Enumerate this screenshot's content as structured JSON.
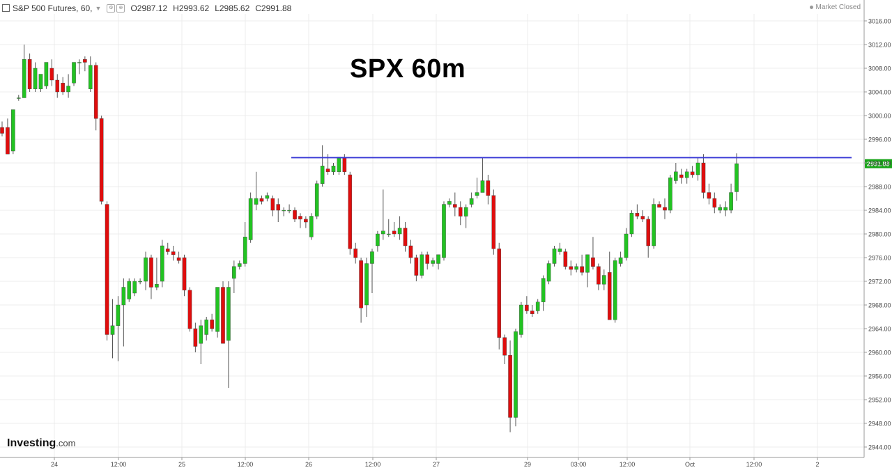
{
  "header": {
    "symbol": "S&P 500 Futures, 60,",
    "caret": "▼",
    "open": "O2987.12",
    "high": "H2993.62",
    "low": "L2985.62",
    "close": "C2991.88",
    "market_status": "Market Closed"
  },
  "brand": {
    "name": "Investing",
    "domain": ".com"
  },
  "colors": {
    "up": "#22c322",
    "down": "#e00d0d",
    "resistance": "#3b3bd6",
    "price_tag": "#1aa51a",
    "grid": "#ececec"
  },
  "chart_data": {
    "type": "candlestick",
    "title": "SPX 60m",
    "ylim": [
      2942,
      3018
    ],
    "y_ticks": [
      "3016.00",
      "3012.00",
      "3008.00",
      "3004.00",
      "3000.00",
      "2996.00",
      "2992.00",
      "2988.00",
      "2984.00",
      "2980.00",
      "2976.00",
      "2972.00",
      "2968.00",
      "2964.00",
      "2960.00",
      "2956.00",
      "2952.00",
      "2948.00",
      "2944.00"
    ],
    "x_ticks": [
      "24",
      "12:00",
      "25",
      "12:00",
      "26",
      "12:00",
      "27",
      "29",
      "03:00",
      "12:00",
      "Oct",
      "12:00",
      "2"
    ],
    "last_price": "2991.88",
    "resistance_level": 2992.9,
    "candles": [
      {
        "o": 2998.0,
        "h": 2999.0,
        "l": 2996.5,
        "c": 2997.0
      },
      {
        "o": 2998.0,
        "h": 2999.5,
        "l": 2993.5,
        "c": 2993.5
      },
      {
        "o": 2994.0,
        "h": 3001.0,
        "l": 2993.5,
        "c": 3001.0
      },
      {
        "o": 3003.0,
        "h": 3003.5,
        "l": 3002.5,
        "c": 3003.0
      },
      {
        "o": 3003.0,
        "h": 3012.0,
        "l": 3003.0,
        "c": 3009.5
      },
      {
        "o": 3009.5,
        "h": 3010.5,
        "l": 3004.0,
        "c": 3004.5
      },
      {
        "o": 3004.5,
        "h": 3009.0,
        "l": 3004.0,
        "c": 3008.0
      },
      {
        "o": 3004.5,
        "h": 3007.0,
        "l": 3004.0,
        "c": 3007.0
      },
      {
        "o": 3005.0,
        "h": 3009.0,
        "l": 3004.5,
        "c": 3009.0
      },
      {
        "o": 3008.0,
        "h": 3009.5,
        "l": 3005.0,
        "c": 3006.0
      },
      {
        "o": 3006.0,
        "h": 3007.0,
        "l": 3003.0,
        "c": 3004.0
      },
      {
        "o": 3005.5,
        "h": 3006.5,
        "l": 3003.5,
        "c": 3004.0
      },
      {
        "o": 3004.0,
        "h": 3007.0,
        "l": 3003.0,
        "c": 3005.0
      },
      {
        "o": 3005.5,
        "h": 3009.0,
        "l": 3005.0,
        "c": 3009.0
      },
      {
        "o": 3009.0,
        "h": 3009.5,
        "l": 3007.0,
        "c": 3009.0
      },
      {
        "o": 3009.5,
        "h": 3010.0,
        "l": 3007.5,
        "c": 3009.0
      },
      {
        "o": 3004.5,
        "h": 3010.0,
        "l": 3004.0,
        "c": 3008.5
      },
      {
        "o": 3008.5,
        "h": 3009.0,
        "l": 2997.5,
        "c": 2999.5
      },
      {
        "o": 2999.5,
        "h": 3000.0,
        "l": 2985.0,
        "c": 2985.5
      },
      {
        "o": 2985.0,
        "h": 2985.5,
        "l": 2962.0,
        "c": 2963.0
      },
      {
        "o": 2963.0,
        "h": 2969.0,
        "l": 2959.0,
        "c": 2964.5
      },
      {
        "o": 2964.5,
        "h": 2969.5,
        "l": 2958.5,
        "c": 2968.0
      },
      {
        "o": 2968.0,
        "h": 2972.5,
        "l": 2961.0,
        "c": 2971.0
      },
      {
        "o": 2969.0,
        "h": 2972.5,
        "l": 2968.5,
        "c": 2972.0
      },
      {
        "o": 2970.0,
        "h": 2972.5,
        "l": 2969.5,
        "c": 2972.0
      },
      {
        "o": 2972.0,
        "h": 2972.5,
        "l": 2971.5,
        "c": 2972.0
      },
      {
        "o": 2972.0,
        "h": 2977.0,
        "l": 2970.5,
        "c": 2976.0
      },
      {
        "o": 2976.0,
        "h": 2976.5,
        "l": 2969.0,
        "c": 2971.0
      },
      {
        "o": 2971.0,
        "h": 2976.0,
        "l": 2970.5,
        "c": 2971.5
      },
      {
        "o": 2972.0,
        "h": 2979.0,
        "l": 2971.0,
        "c": 2978.0
      },
      {
        "o": 2977.5,
        "h": 2978.5,
        "l": 2976.5,
        "c": 2977.0
      },
      {
        "o": 2977.0,
        "h": 2978.0,
        "l": 2975.5,
        "c": 2976.5
      },
      {
        "o": 2976.0,
        "h": 2977.0,
        "l": 2975.0,
        "c": 2975.5
      },
      {
        "o": 2976.0,
        "h": 2976.5,
        "l": 2969.5,
        "c": 2970.5
      },
      {
        "o": 2970.5,
        "h": 2971.0,
        "l": 2963.5,
        "c": 2964.0
      },
      {
        "o": 2964.0,
        "h": 2965.0,
        "l": 2960.0,
        "c": 2961.0
      },
      {
        "o": 2961.5,
        "h": 2965.5,
        "l": 2958.0,
        "c": 2964.5
      },
      {
        "o": 2963.0,
        "h": 2966.0,
        "l": 2962.0,
        "c": 2965.5
      },
      {
        "o": 2965.5,
        "h": 2966.5,
        "l": 2963.5,
        "c": 2964.0
      },
      {
        "o": 2963.5,
        "h": 2971.0,
        "l": 2962.5,
        "c": 2971.0
      },
      {
        "o": 2971.0,
        "h": 2972.0,
        "l": 2961.5,
        "c": 2961.5
      },
      {
        "o": 2962.0,
        "h": 2972.0,
        "l": 2954.0,
        "c": 2971.0
      },
      {
        "o": 2972.5,
        "h": 2975.5,
        "l": 2970.0,
        "c": 2974.5
      },
      {
        "o": 2974.5,
        "h": 2975.5,
        "l": 2974.0,
        "c": 2975.0
      },
      {
        "o": 2975.0,
        "h": 2982.0,
        "l": 2974.5,
        "c": 2979.5
      },
      {
        "o": 2979.0,
        "h": 2987.0,
        "l": 2978.5,
        "c": 2986.0
      },
      {
        "o": 2985.0,
        "h": 2990.5,
        "l": 2984.0,
        "c": 2986.0
      },
      {
        "o": 2986.0,
        "h": 2986.5,
        "l": 2985.0,
        "c": 2985.5
      },
      {
        "o": 2986.0,
        "h": 2987.0,
        "l": 2985.5,
        "c": 2986.5
      },
      {
        "o": 2986.0,
        "h": 2986.5,
        "l": 2983.0,
        "c": 2984.0
      },
      {
        "o": 2985.0,
        "h": 2986.0,
        "l": 2982.0,
        "c": 2984.0
      },
      {
        "o": 2984.0,
        "h": 2984.5,
        "l": 2983.0,
        "c": 2984.0
      },
      {
        "o": 2984.0,
        "h": 2985.0,
        "l": 2983.5,
        "c": 2984.0
      },
      {
        "o": 2984.0,
        "h": 2984.5,
        "l": 2982.0,
        "c": 2982.5
      },
      {
        "o": 2983.0,
        "h": 2983.5,
        "l": 2981.0,
        "c": 2982.5
      },
      {
        "o": 2982.5,
        "h": 2983.0,
        "l": 2981.0,
        "c": 2982.0
      },
      {
        "o": 2979.5,
        "h": 2983.5,
        "l": 2979.0,
        "c": 2983.0
      },
      {
        "o": 2983.0,
        "h": 2989.0,
        "l": 2982.5,
        "c": 2988.5
      },
      {
        "o": 2988.5,
        "h": 2995.0,
        "l": 2988.0,
        "c": 2991.5
      },
      {
        "o": 2991.0,
        "h": 2993.5,
        "l": 2990.0,
        "c": 2990.5
      },
      {
        "o": 2990.5,
        "h": 2992.0,
        "l": 2990.0,
        "c": 2991.5
      },
      {
        "o": 2990.5,
        "h": 2993.0,
        "l": 2990.0,
        "c": 2993.0
      },
      {
        "o": 2993.0,
        "h": 2993.5,
        "l": 2990.0,
        "c": 2990.5
      },
      {
        "o": 2990.0,
        "h": 2990.5,
        "l": 2976.5,
        "c": 2977.5
      },
      {
        "o": 2977.5,
        "h": 2978.5,
        "l": 2975.0,
        "c": 2976.0
      },
      {
        "o": 2975.5,
        "h": 2976.0,
        "l": 2965.0,
        "c": 2967.5
      },
      {
        "o": 2968.0,
        "h": 2976.0,
        "l": 2966.0,
        "c": 2975.0
      },
      {
        "o": 2975.0,
        "h": 2977.5,
        "l": 2970.0,
        "c": 2977.0
      },
      {
        "o": 2978.0,
        "h": 2980.5,
        "l": 2977.0,
        "c": 2980.0
      },
      {
        "o": 2980.0,
        "h": 2987.5,
        "l": 2979.0,
        "c": 2980.5
      },
      {
        "o": 2980.0,
        "h": 2982.5,
        "l": 2979.5,
        "c": 2980.0
      },
      {
        "o": 2980.5,
        "h": 2982.0,
        "l": 2979.5,
        "c": 2980.0
      },
      {
        "o": 2980.0,
        "h": 2983.0,
        "l": 2979.0,
        "c": 2981.0
      },
      {
        "o": 2981.0,
        "h": 2982.0,
        "l": 2977.0,
        "c": 2978.0
      },
      {
        "o": 2978.0,
        "h": 2979.0,
        "l": 2975.0,
        "c": 2976.0
      },
      {
        "o": 2976.0,
        "h": 2976.5,
        "l": 2972.0,
        "c": 2973.0
      },
      {
        "o": 2973.0,
        "h": 2977.0,
        "l": 2972.5,
        "c": 2976.5
      },
      {
        "o": 2976.5,
        "h": 2977.0,
        "l": 2974.0,
        "c": 2975.0
      },
      {
        "o": 2975.0,
        "h": 2976.0,
        "l": 2974.5,
        "c": 2975.5
      },
      {
        "o": 2975.0,
        "h": 2976.5,
        "l": 2974.0,
        "c": 2976.5
      },
      {
        "o": 2976.0,
        "h": 2985.5,
        "l": 2975.5,
        "c": 2985.0
      },
      {
        "o": 2985.0,
        "h": 2986.0,
        "l": 2984.5,
        "c": 2985.5
      },
      {
        "o": 2985.0,
        "h": 2987.0,
        "l": 2983.0,
        "c": 2984.5
      },
      {
        "o": 2984.5,
        "h": 2985.5,
        "l": 2981.5,
        "c": 2983.0
      },
      {
        "o": 2983.0,
        "h": 2985.0,
        "l": 2981.0,
        "c": 2984.5
      },
      {
        "o": 2985.0,
        "h": 2987.0,
        "l": 2984.5,
        "c": 2986.0
      },
      {
        "o": 2986.5,
        "h": 2989.5,
        "l": 2986.0,
        "c": 2987.0
      },
      {
        "o": 2987.0,
        "h": 2993.0,
        "l": 2987.0,
        "c": 2989.0
      },
      {
        "o": 2989.0,
        "h": 2990.0,
        "l": 2985.0,
        "c": 2986.5
      },
      {
        "o": 2986.5,
        "h": 2987.5,
        "l": 2976.5,
        "c": 2977.5
      },
      {
        "o": 2977.5,
        "h": 2978.5,
        "l": 2960.5,
        "c": 2962.5
      },
      {
        "o": 2962.5,
        "h": 2963.0,
        "l": 2958.0,
        "c": 2959.5
      },
      {
        "o": 2959.5,
        "h": 2962.0,
        "l": 2946.5,
        "c": 2949.0
      },
      {
        "o": 2949.0,
        "h": 2964.0,
        "l": 2947.5,
        "c": 2963.5
      },
      {
        "o": 2963.0,
        "h": 2968.5,
        "l": 2962.5,
        "c": 2968.0
      },
      {
        "o": 2968.0,
        "h": 2969.5,
        "l": 2966.5,
        "c": 2967.0
      },
      {
        "o": 2967.0,
        "h": 2968.0,
        "l": 2966.0,
        "c": 2966.5
      },
      {
        "o": 2967.0,
        "h": 2969.0,
        "l": 2966.5,
        "c": 2968.5
      },
      {
        "o": 2968.5,
        "h": 2973.0,
        "l": 2967.0,
        "c": 2972.5
      },
      {
        "o": 2972.0,
        "h": 2975.5,
        "l": 2971.5,
        "c": 2975.0
      },
      {
        "o": 2975.0,
        "h": 2978.0,
        "l": 2974.5,
        "c": 2977.5
      },
      {
        "o": 2977.0,
        "h": 2978.5,
        "l": 2976.5,
        "c": 2977.5
      },
      {
        "o": 2977.0,
        "h": 2977.5,
        "l": 2974.0,
        "c": 2974.5
      },
      {
        "o": 2974.5,
        "h": 2975.5,
        "l": 2973.0,
        "c": 2974.0
      },
      {
        "o": 2974.0,
        "h": 2975.0,
        "l": 2973.5,
        "c": 2974.5
      },
      {
        "o": 2974.5,
        "h": 2976.5,
        "l": 2973.0,
        "c": 2973.5
      },
      {
        "o": 2973.5,
        "h": 2976.5,
        "l": 2971.0,
        "c": 2976.5
      },
      {
        "o": 2976.0,
        "h": 2979.5,
        "l": 2974.0,
        "c": 2974.5
      },
      {
        "o": 2974.5,
        "h": 2975.0,
        "l": 2970.5,
        "c": 2971.5
      },
      {
        "o": 2971.5,
        "h": 2974.0,
        "l": 2970.5,
        "c": 2973.0
      },
      {
        "o": 2973.5,
        "h": 2977.0,
        "l": 2966.0,
        "c": 2965.5
      },
      {
        "o": 2965.5,
        "h": 2976.0,
        "l": 2965.0,
        "c": 2975.5
      },
      {
        "o": 2975.0,
        "h": 2977.0,
        "l": 2974.5,
        "c": 2976.0
      },
      {
        "o": 2976.0,
        "h": 2981.0,
        "l": 2975.5,
        "c": 2980.0
      },
      {
        "o": 2980.0,
        "h": 2984.0,
        "l": 2979.5,
        "c": 2983.5
      },
      {
        "o": 2983.5,
        "h": 2985.0,
        "l": 2982.5,
        "c": 2983.0
      },
      {
        "o": 2983.0,
        "h": 2984.0,
        "l": 2982.0,
        "c": 2982.5
      },
      {
        "o": 2982.5,
        "h": 2983.0,
        "l": 2976.0,
        "c": 2978.0
      },
      {
        "o": 2978.0,
        "h": 2986.0,
        "l": 2977.5,
        "c": 2985.0
      },
      {
        "o": 2985.0,
        "h": 2985.5,
        "l": 2984.5,
        "c": 2984.5
      },
      {
        "o": 2984.5,
        "h": 2986.0,
        "l": 2982.5,
        "c": 2984.0
      },
      {
        "o": 2984.0,
        "h": 2990.0,
        "l": 2983.5,
        "c": 2989.5
      },
      {
        "o": 2989.0,
        "h": 2992.0,
        "l": 2988.5,
        "c": 2990.5
      },
      {
        "o": 2990.0,
        "h": 2991.0,
        "l": 2988.5,
        "c": 2989.5
      },
      {
        "o": 2989.5,
        "h": 2991.0,
        "l": 2988.5,
        "c": 2990.5
      },
      {
        "o": 2990.5,
        "h": 2991.5,
        "l": 2989.5,
        "c": 2990.0
      },
      {
        "o": 2990.0,
        "h": 2993.0,
        "l": 2989.0,
        "c": 2992.0
      },
      {
        "o": 2992.0,
        "h": 2993.5,
        "l": 2986.0,
        "c": 2987.0
      },
      {
        "o": 2987.0,
        "h": 2988.5,
        "l": 2985.0,
        "c": 2986.0
      },
      {
        "o": 2986.0,
        "h": 2987.0,
        "l": 2983.5,
        "c": 2984.5
      },
      {
        "o": 2984.0,
        "h": 2985.0,
        "l": 2983.5,
        "c": 2984.5
      },
      {
        "o": 2984.0,
        "h": 2985.5,
        "l": 2983.0,
        "c": 2984.5
      },
      {
        "o": 2984.0,
        "h": 2988.5,
        "l": 2983.5,
        "c": 2987.0
      },
      {
        "o": 2987.12,
        "h": 2993.62,
        "l": 2985.62,
        "c": 2991.88
      }
    ]
  }
}
